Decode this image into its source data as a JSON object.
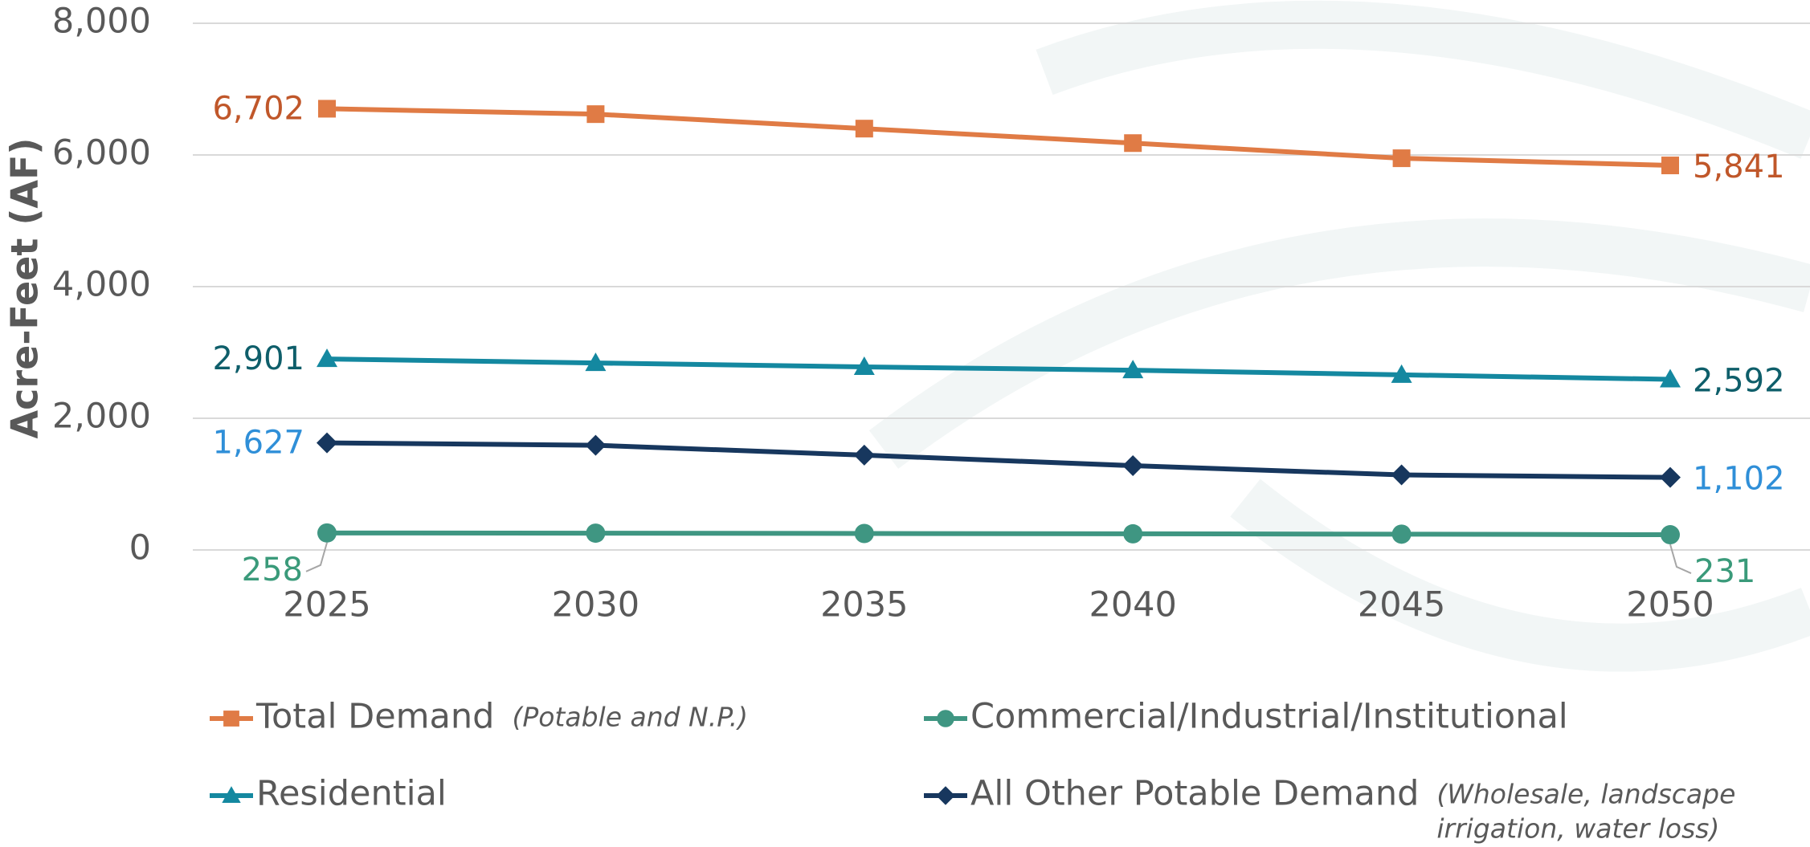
{
  "chart_data": {
    "type": "line",
    "y_label": "Acre-Feet (AF)",
    "categories": [
      "2025",
      "2030",
      "2035",
      "2040",
      "2045",
      "2050"
    ],
    "ylim": [
      0,
      8000
    ],
    "yticks": [
      {
        "value": 0,
        "label": "0"
      },
      {
        "value": 2000,
        "label": "2,000"
      },
      {
        "value": 4000,
        "label": "4,000"
      },
      {
        "value": 6000,
        "label": "6,000"
      },
      {
        "value": 8000,
        "label": "8,000"
      }
    ],
    "grid": true,
    "series": [
      {
        "name": "Total Demand",
        "note": [
          "(Potable and N.P.)"
        ],
        "color": "#e07b45",
        "label_color": "#c0572a",
        "marker": "square",
        "values": [
          6702,
          6620,
          6400,
          6180,
          5950,
          5841
        ],
        "value_labels": [
          "6,702",
          null,
          null,
          null,
          null,
          "5,841"
        ]
      },
      {
        "name": "Commercial/Industrial/Institutional",
        "note": [],
        "color": "#3f9682",
        "label_color": "#3a9a7a",
        "marker": "circle",
        "values": [
          258,
          255,
          250,
          245,
          240,
          231
        ],
        "value_labels": [
          "258",
          null,
          null,
          null,
          null,
          "231"
        ]
      },
      {
        "name": "Residential",
        "note": [],
        "color": "#1488a0",
        "label_color": "#0e5e6a",
        "marker": "triangle",
        "values": [
          2901,
          2840,
          2780,
          2730,
          2660,
          2592
        ],
        "value_labels": [
          "2,901",
          null,
          null,
          null,
          null,
          "2,592"
        ]
      },
      {
        "name": "All Other Potable Demand",
        "note": [
          "(Wholesale, landscape",
          "irrigation, water loss)"
        ],
        "color": "#17375e",
        "label_color": "#2f8fd8",
        "marker": "diamond",
        "values": [
          1627,
          1590,
          1440,
          1280,
          1140,
          1102
        ],
        "value_labels": [
          "1,627",
          null,
          null,
          null,
          null,
          "1,102"
        ]
      }
    ]
  }
}
